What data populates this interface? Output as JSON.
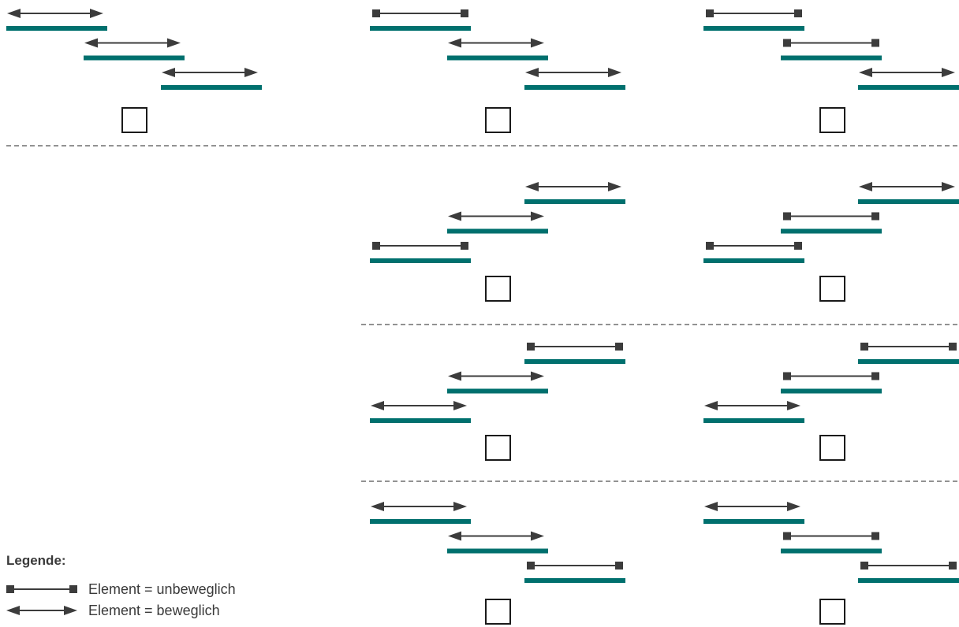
{
  "colors": {
    "bar": "#00706e",
    "arrow": "#3c3c3c",
    "divider": "#6e6e6e",
    "checkbox": "#1a1a1a"
  },
  "legend": {
    "title": "Legende:",
    "fixed_label": "Element = unbeweglich",
    "movable_label": "Element = beweglich"
  },
  "panels": [
    {
      "id": "p1",
      "direction": "down",
      "elements": [
        "movable",
        "movable",
        "movable"
      ]
    },
    {
      "id": "p2",
      "direction": "down",
      "elements": [
        "fixed",
        "movable",
        "movable"
      ]
    },
    {
      "id": "p3",
      "direction": "down",
      "elements": [
        "fixed",
        "fixed",
        "movable"
      ]
    },
    {
      "id": "p4",
      "direction": "up",
      "elements": [
        "fixed",
        "movable",
        "movable"
      ]
    },
    {
      "id": "p5",
      "direction": "up",
      "elements": [
        "fixed",
        "fixed",
        "movable"
      ]
    },
    {
      "id": "p6",
      "direction": "up",
      "elements": [
        "movable",
        "movable",
        "fixed"
      ]
    },
    {
      "id": "p7",
      "direction": "up",
      "elements": [
        "movable",
        "fixed",
        "fixed"
      ]
    },
    {
      "id": "p8",
      "direction": "down",
      "elements": [
        "movable",
        "movable",
        "fixed"
      ]
    },
    {
      "id": "p9",
      "direction": "down",
      "elements": [
        "movable",
        "fixed",
        "fixed"
      ]
    }
  ]
}
